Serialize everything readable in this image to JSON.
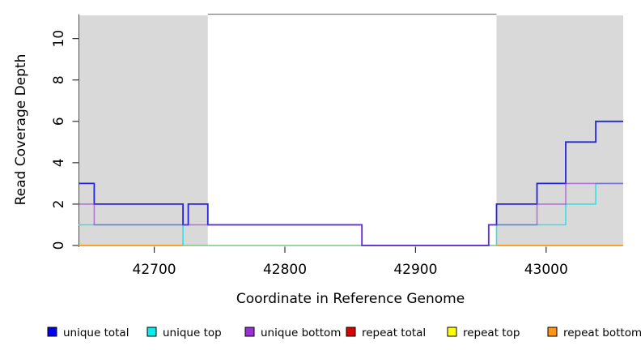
{
  "figure": {
    "ylabel": "Read Coverage Depth",
    "xlabel": "Coordinate in Reference Genome"
  },
  "axes": {
    "x_ticks": [
      42700,
      42800,
      42900,
      43000
    ],
    "y_ticks": [
      0,
      2,
      4,
      6,
      8,
      10
    ],
    "xlim": [
      42642,
      43059
    ],
    "ylim": [
      0,
      11.2
    ]
  },
  "legend": [
    {
      "label": "unique total",
      "color": "#0000ee"
    },
    {
      "label": "unique top",
      "color": "#00eeee"
    },
    {
      "label": "unique bottom",
      "color": "#9b30d6"
    },
    {
      "label": "repeat total",
      "color": "#dd0000"
    },
    {
      "label": "repeat top",
      "color": "#ffff00"
    },
    {
      "label": "repeat bottom",
      "color": "#ff9612"
    }
  ],
  "colors": {
    "shade": "#d9d9d9",
    "frame_top": "#808080",
    "axis_line": "#4d4d4d",
    "tick": "#333333"
  },
  "chart_data": {
    "type": "line",
    "title": "",
    "xlabel": "Coordinate in Reference Genome",
    "ylabel": "Read Coverage Depth",
    "xlim": [
      42642,
      43059
    ],
    "ylim": [
      0,
      11.2
    ],
    "grid": false,
    "legend_position": "bottom",
    "shaded_repeat_regions": [
      [
        42642,
        42741
      ],
      [
        42962,
        43059
      ]
    ],
    "series": [
      {
        "name": "unique total",
        "color": "#2424dd",
        "steps": [
          [
            42642,
            3
          ],
          [
            42654,
            2
          ],
          [
            42722,
            1
          ],
          [
            42726,
            2
          ],
          [
            42741,
            1
          ],
          [
            42859,
            0
          ],
          [
            42956,
            1
          ],
          [
            42962,
            2
          ],
          [
            42993,
            3
          ],
          [
            43015,
            5
          ],
          [
            43038,
            6
          ],
          [
            43059,
            6
          ]
        ]
      },
      {
        "name": "unique top",
        "color": "#00eeee",
        "steps": [
          [
            42642,
            1
          ],
          [
            42722,
            0
          ],
          [
            42962,
            1
          ],
          [
            43015,
            2
          ],
          [
            43038,
            3
          ],
          [
            43059,
            3
          ]
        ]
      },
      {
        "name": "unique bottom",
        "color": "#9b30d6",
        "steps": [
          [
            42642,
            2
          ],
          [
            42654,
            1
          ],
          [
            42859,
            0
          ],
          [
            42956,
            1
          ],
          [
            42993,
            2
          ],
          [
            43015,
            3
          ],
          [
            43059,
            3
          ]
        ]
      },
      {
        "name": "repeat total",
        "color": "#dd0000",
        "steps": [
          [
            42642,
            0
          ],
          [
            43059,
            0
          ]
        ]
      },
      {
        "name": "repeat top",
        "color": "#ffff00",
        "steps": [
          [
            42642,
            0
          ],
          [
            43059,
            0
          ]
        ]
      },
      {
        "name": "repeat bottom",
        "color": "#ff9612",
        "steps": [
          [
            42642,
            0
          ],
          [
            42722,
            0
          ],
          [
            42962,
            0
          ],
          [
            43059,
            0
          ]
        ]
      }
    ],
    "render_lines": [
      {
        "name": "baseline-overlap-line",
        "color": "#7dc87d",
        "width": 1.4,
        "opacity": 1,
        "path": [
          [
            42722,
            0
          ],
          [
            42962,
            0
          ]
        ]
      },
      {
        "name": "unique-top-line-left",
        "color": "#3cdede",
        "width": 1.6,
        "opacity": 1,
        "path": [
          [
            42642,
            1
          ],
          [
            42722,
            1
          ],
          [
            42722,
            0
          ]
        ]
      },
      {
        "name": "unique-top-line-right",
        "color": "#3cdede",
        "width": 1.6,
        "opacity": 1,
        "path": [
          [
            42962,
            0
          ],
          [
            42962,
            1
          ],
          [
            43015,
            1
          ],
          [
            43015,
            2
          ],
          [
            43038,
            2
          ],
          [
            43038,
            3
          ],
          [
            43059,
            3
          ]
        ]
      },
      {
        "name": "unique-total-line",
        "color": "#2424dd",
        "width": 1.8,
        "opacity": 1,
        "path": [
          [
            42642,
            3
          ],
          [
            42654,
            3
          ],
          [
            42654,
            2
          ],
          [
            42722,
            2
          ],
          [
            42722,
            1
          ],
          [
            42726,
            1
          ],
          [
            42726,
            2
          ],
          [
            42741,
            2
          ],
          [
            42741,
            1
          ],
          [
            42859,
            1
          ],
          [
            42859,
            0
          ],
          [
            42956,
            0
          ],
          [
            42956,
            1
          ],
          [
            42962,
            1
          ],
          [
            42962,
            2
          ],
          [
            42993,
            2
          ],
          [
            42993,
            3
          ],
          [
            43015,
            3
          ],
          [
            43015,
            5
          ],
          [
            43038,
            5
          ],
          [
            43038,
            6
          ],
          [
            43059,
            6
          ]
        ]
      },
      {
        "name": "unique-bottom-line",
        "color": "#9b30d6",
        "width": 1.6,
        "opacity": 0.6,
        "path": [
          [
            42642,
            2
          ],
          [
            42654,
            2
          ],
          [
            42654,
            1
          ],
          [
            42859,
            1
          ],
          [
            42859,
            0
          ],
          [
            42956,
            0
          ],
          [
            42956,
            1
          ],
          [
            42993,
            1
          ],
          [
            42993,
            2
          ],
          [
            43015,
            2
          ],
          [
            43015,
            3
          ],
          [
            43059,
            3
          ]
        ]
      },
      {
        "name": "repeat-bottom-line-left",
        "color": "#ff9612",
        "width": 1.8,
        "opacity": 1,
        "path": [
          [
            42642,
            0
          ],
          [
            42722,
            0
          ]
        ]
      },
      {
        "name": "repeat-bottom-line-right",
        "color": "#ff9612",
        "width": 1.8,
        "opacity": 1,
        "path": [
          [
            42962,
            0
          ],
          [
            43059,
            0
          ]
        ]
      }
    ]
  }
}
